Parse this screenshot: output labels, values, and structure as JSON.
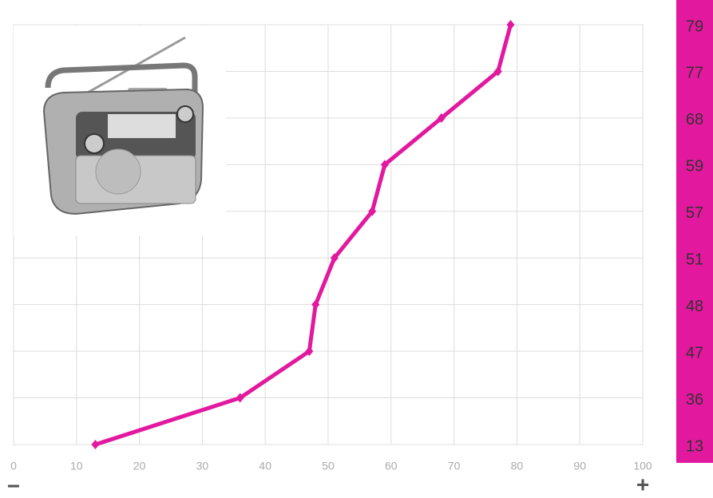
{
  "chart_data": {
    "type": "line",
    "values": [
      13,
      36,
      47,
      48,
      51,
      57,
      59,
      68,
      77,
      79
    ],
    "color": "#e2189e",
    "label_band_color": "#e2189e",
    "xlim": [
      0,
      100
    ],
    "xticks": [
      0,
      10,
      20,
      30,
      40,
      50,
      60,
      70,
      80,
      90,
      100
    ],
    "grid": true,
    "x_min_label": "−",
    "x_max_label": "+"
  }
}
